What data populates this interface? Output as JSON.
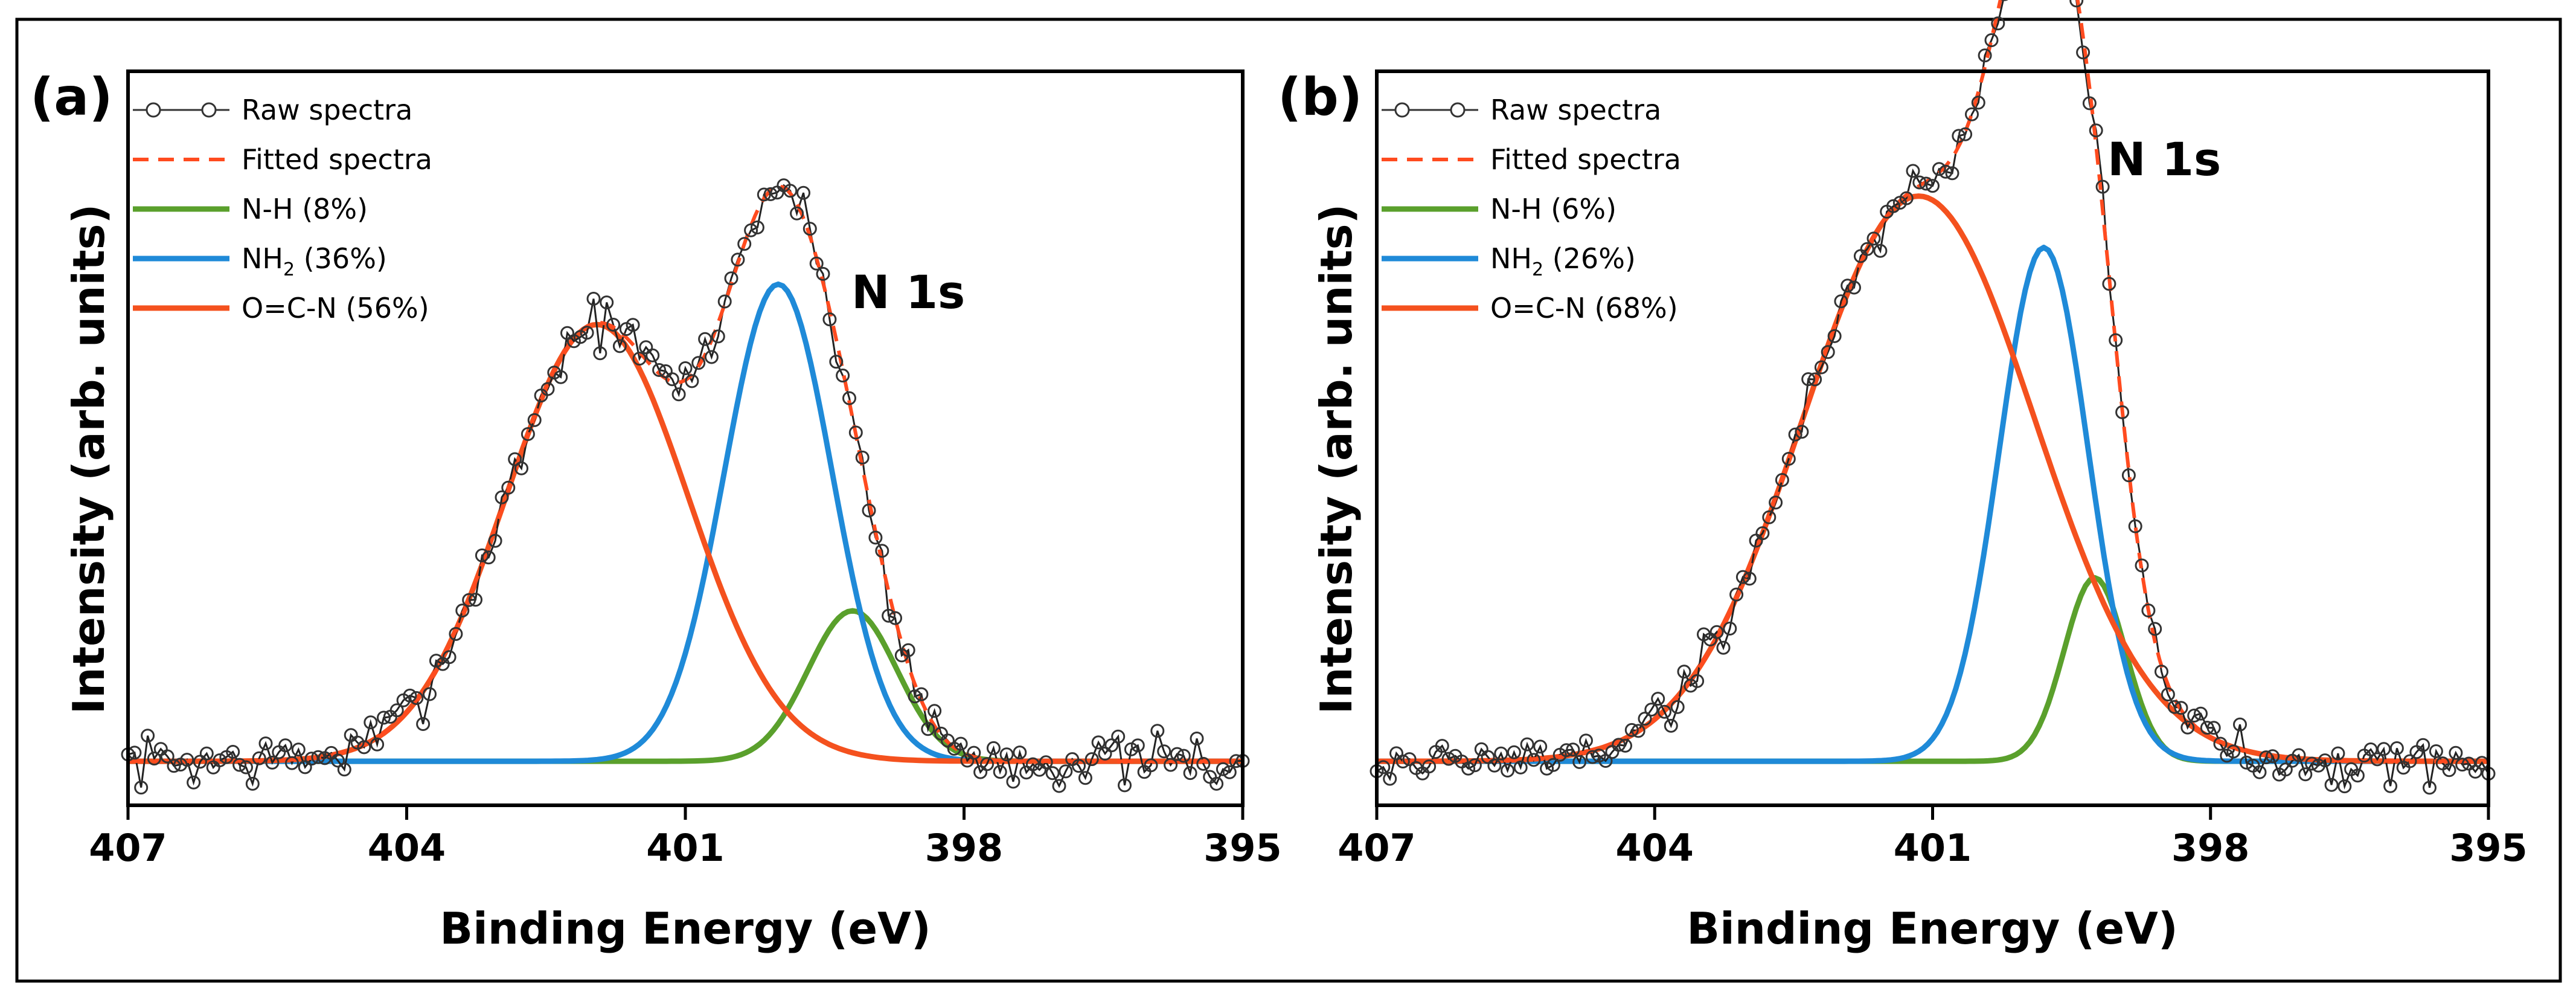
{
  "chart_data": [
    {
      "type": "line",
      "panel_label": "(a)",
      "spectrum_label": "N 1s",
      "xlabel": "Binding Energy (eV)",
      "ylabel": "Intensity (arb. units)",
      "xlim": [
        407,
        395
      ],
      "xticks": [
        407,
        404,
        401,
        398,
        395
      ],
      "ylim": [
        0,
        100
      ],
      "y_tick_labels": false,
      "legend": [
        {
          "label": "Raw spectra",
          "style": "line-circle",
          "color": "#333333"
        },
        {
          "label": "Fitted spectra",
          "style": "dashed",
          "color": "#ff4b1f"
        },
        {
          "label": "N-H (8%)",
          "style": "solid",
          "color": "#5aa02c"
        },
        {
          "label_main": "NH",
          "label_sub": "2",
          "label_tail": " (36%)",
          "style": "solid",
          "color": "#1f8ad8"
        },
        {
          "label": "O=C-N (56%)",
          "style": "solid",
          "color": "#f4511e"
        }
      ],
      "baseline": 6,
      "components": [
        {
          "name": "N-H",
          "center": 399.2,
          "sigma": 0.48,
          "height": 20.5,
          "color": "#5aa02c"
        },
        {
          "name": "NH2",
          "center": 400.0,
          "sigma": 0.58,
          "height": 65,
          "color": "#1f8ad8"
        },
        {
          "name": "O=C-N",
          "center": 401.95,
          "sigma": 0.98,
          "height": 59.5,
          "color": "#f4511e"
        }
      ],
      "raw_seed": 7,
      "raw_noise": 2.2
    },
    {
      "type": "line",
      "panel_label": "(b)",
      "spectrum_label": "N 1s",
      "xlabel": "Binding Energy (eV)",
      "ylabel": "Intensity (arb. units)",
      "xlim": [
        407,
        395
      ],
      "xticks": [
        407,
        404,
        401,
        398,
        395
      ],
      "ylim": [
        0,
        100
      ],
      "y_tick_labels": false,
      "legend": [
        {
          "label": "Raw spectra",
          "style": "line-circle",
          "color": "#333333"
        },
        {
          "label": "Fitted spectra",
          "style": "dashed",
          "color": "#ff4b1f"
        },
        {
          "label": "N-H (6%)",
          "style": "solid",
          "color": "#5aa02c"
        },
        {
          "label_main": "NH",
          "label_sub": "2",
          "label_tail": " (26%)",
          "style": "solid",
          "color": "#1f8ad8"
        },
        {
          "label": "O=C-N (68%)",
          "style": "solid",
          "color": "#f4511e"
        }
      ],
      "baseline": 6,
      "components": [
        {
          "name": "N-H",
          "center": 399.25,
          "sigma": 0.33,
          "height": 25,
          "color": "#5aa02c"
        },
        {
          "name": "NH2",
          "center": 399.8,
          "sigma": 0.48,
          "height": 70,
          "color": "#1f8ad8"
        },
        {
          "name": "O=C-N",
          "center": 401.15,
          "sigma": 1.25,
          "height": 77,
          "color": "#f4511e"
        }
      ],
      "raw_seed": 19,
      "raw_noise": 2.0
    }
  ]
}
